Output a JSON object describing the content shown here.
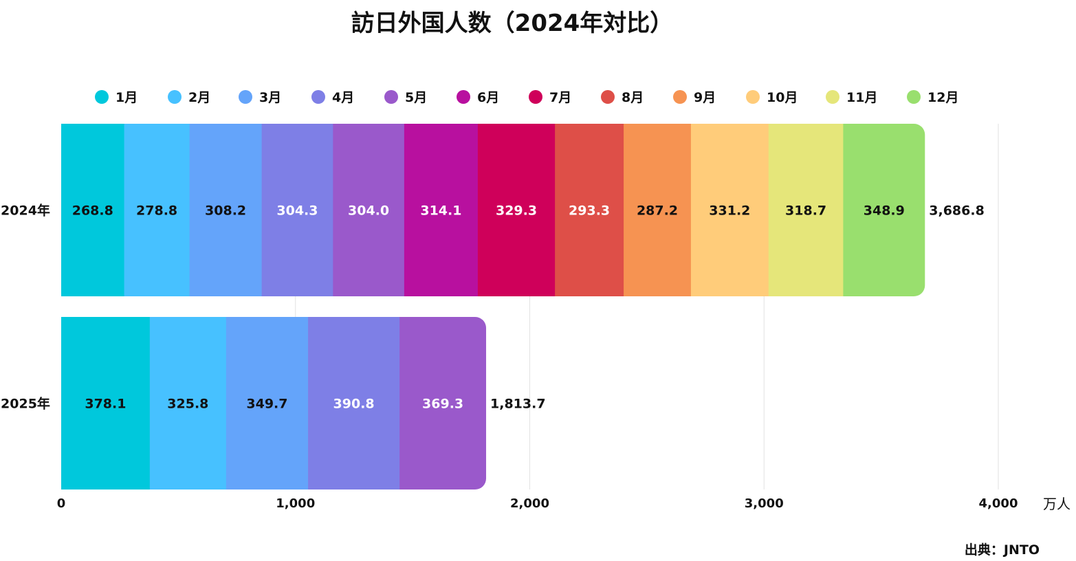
{
  "chart_data": {
    "type": "bar",
    "orientation": "horizontal",
    "stacked": true,
    "title": "訪日外国人数（2024年対比）",
    "categories": [
      "2024年",
      "2025年"
    ],
    "series": [
      {
        "name": "1月",
        "color": "#00C8DC",
        "label_color": "#111111",
        "values": [
          268.8,
          378.1
        ]
      },
      {
        "name": "2月",
        "color": "#47C1FF",
        "label_color": "#111111",
        "values": [
          278.8,
          325.8
        ]
      },
      {
        "name": "3月",
        "color": "#64A4FA",
        "label_color": "#111111",
        "values": [
          308.2,
          349.7
        ]
      },
      {
        "name": "4月",
        "color": "#7E7FE6",
        "label_color": "#ffffff",
        "values": [
          304.3,
          390.8
        ]
      },
      {
        "name": "5月",
        "color": "#9A59CB",
        "label_color": "#ffffff",
        "values": [
          304.0,
          369.3
        ]
      },
      {
        "name": "6月",
        "color": "#B8109F",
        "label_color": "#ffffff",
        "values": [
          314.1,
          null
        ]
      },
      {
        "name": "7月",
        "color": "#CF005A",
        "label_color": "#ffffff",
        "values": [
          329.3,
          null
        ]
      },
      {
        "name": "8月",
        "color": "#DE4F48",
        "label_color": "#ffffff",
        "values": [
          293.3,
          null
        ]
      },
      {
        "name": "9月",
        "color": "#F69352",
        "label_color": "#111111",
        "values": [
          287.2,
          null
        ]
      },
      {
        "name": "10月",
        "color": "#FFCC7A",
        "label_color": "#111111",
        "values": [
          331.2,
          null
        ]
      },
      {
        "name": "11月",
        "color": "#E5E67A",
        "label_color": "#111111",
        "values": [
          318.7,
          null
        ]
      },
      {
        "name": "12月",
        "color": "#99DF6E",
        "label_color": "#111111",
        "values": [
          348.9,
          null
        ]
      }
    ],
    "totals": [
      3686.8,
      1813.7
    ],
    "xlim": [
      0,
      4000
    ],
    "xticks": [
      0,
      1000,
      2000,
      3000,
      4000
    ],
    "xunit": "万人",
    "grid": true,
    "legend_position": "top",
    "source": "出典：JNTO"
  }
}
